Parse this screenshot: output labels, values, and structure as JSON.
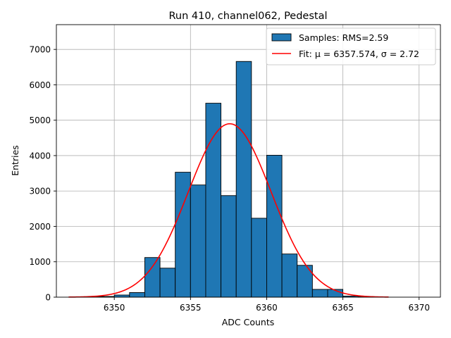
{
  "chart_data": {
    "type": "bar",
    "title": "Run 410, channel062, Pedestal",
    "xlabel": "ADC Counts",
    "ylabel": "Entries",
    "xlim": [
      6346.2,
      6371.4
    ],
    "ylim": [
      0,
      7700
    ],
    "xticks": [
      6350,
      6355,
      6360,
      6365,
      6370
    ],
    "yticks": [
      0,
      1000,
      2000,
      3000,
      4000,
      5000,
      6000,
      7000
    ],
    "grid": true,
    "legend_position": "top-right",
    "bin_width": 1,
    "bins": [
      {
        "x0": 6348,
        "value": 10
      },
      {
        "x0": 6349,
        "value": 20
      },
      {
        "x0": 6350,
        "value": 60
      },
      {
        "x0": 6351,
        "value": 130
      },
      {
        "x0": 6352,
        "value": 1120
      },
      {
        "x0": 6353,
        "value": 820
      },
      {
        "x0": 6354,
        "value": 3530
      },
      {
        "x0": 6355,
        "value": 3170
      },
      {
        "x0": 6356,
        "value": 5480
      },
      {
        "x0": 6357,
        "value": 2870
      },
      {
        "x0": 6358,
        "value": 6660
      },
      {
        "x0": 6359,
        "value": 2230
      },
      {
        "x0": 6360,
        "value": 4010
      },
      {
        "x0": 6361,
        "value": 1220
      },
      {
        "x0": 6362,
        "value": 900
      },
      {
        "x0": 6363,
        "value": 220
      },
      {
        "x0": 6364,
        "value": 220
      },
      {
        "x0": 6365,
        "value": 30
      },
      {
        "x0": 6366,
        "value": 10
      }
    ],
    "fit": {
      "type": "gaussian",
      "mu": 6357.574,
      "sigma": 2.72,
      "amplitude": 4900,
      "x_range": [
        6347,
        6368
      ]
    },
    "series": [
      {
        "name": "Samples: RMS=2.59",
        "kind": "histogram",
        "color": "#1f77b4",
        "edgecolor": "#000000"
      },
      {
        "name": "Fit: μ = 6357.574, σ = 2.72",
        "kind": "line",
        "color": "#ff0000"
      }
    ]
  }
}
